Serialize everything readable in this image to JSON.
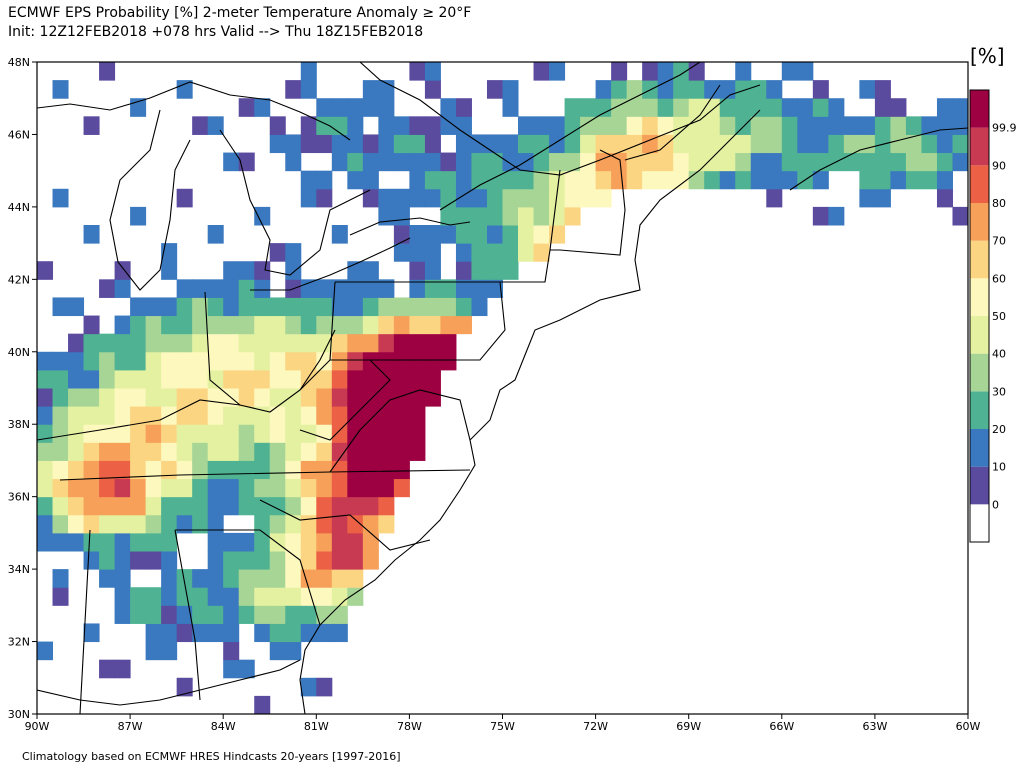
{
  "header": {
    "line1": "ECMWF EPS Probability [%] 2-meter Temperature Anomaly ≥ 20°F",
    "line2": "Init: 12Z12FEB2018 +078 hrs Valid --> Thu 18Z15FEB2018"
  },
  "footer": {
    "text": "Climatology based on ECMWF HRES Hindcasts 20-years [1997-2016]"
  },
  "colorbar": {
    "unit": "[%]",
    "levels": [
      "0",
      "10",
      "20",
      "30",
      "40",
      "50",
      "60",
      "70",
      "80",
      "90",
      "99.9"
    ],
    "colors": [
      "#ffffff",
      "#5a4b9e",
      "#3a79bf",
      "#4fb393",
      "#a6d596",
      "#e3f1a1",
      "#fdf8bd",
      "#fcd583",
      "#f6a05a",
      "#ec6145",
      "#c83a52",
      "#9d0142"
    ]
  },
  "map": {
    "lon_labels": [
      "90W",
      "87W",
      "84W",
      "81W",
      "78W",
      "75W",
      "72W",
      "69W",
      "66W",
      "63W",
      "60W"
    ],
    "lat_labels": [
      "48N",
      "46N",
      "44N",
      "42N",
      "40N",
      "38N",
      "36N",
      "34N",
      "32N",
      "30N"
    ],
    "lon_range": [
      -90,
      -60
    ],
    "lat_range": [
      30,
      48
    ]
  }
}
